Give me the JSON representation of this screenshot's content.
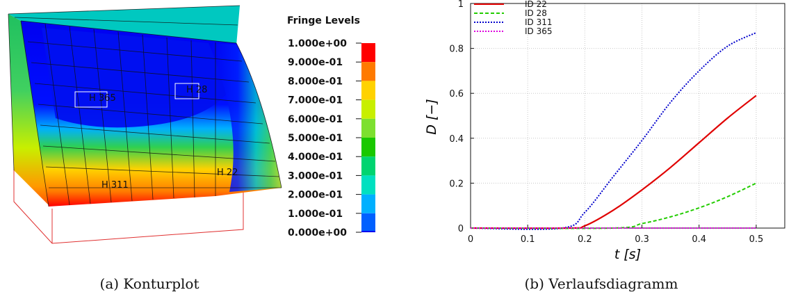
{
  "captions": {
    "a": "(a) Konturplot",
    "b": "(b) Verlaufsdiagramm"
  },
  "contour": {
    "legend_title": "Fringe Levels",
    "levels": [
      "1.000e+00",
      "9.000e-01",
      "8.000e-01",
      "7.000e-01",
      "6.000e-01",
      "5.000e-01",
      "4.000e-01",
      "3.000e-01",
      "2.000e-01",
      "1.000e-01",
      "0.000e+00"
    ],
    "colors": [
      "#ff0000",
      "#ff7a00",
      "#ffd200",
      "#c8ef00",
      "#7de030",
      "#19c800",
      "#00d470",
      "#00e0c0",
      "#00b0ff",
      "#0060ff",
      "#0000f0"
    ],
    "element_labels": [
      "H 365",
      "H 28",
      "H 311",
      "H 22"
    ]
  },
  "chart_data": {
    "type": "line",
    "xlabel": "t [s]",
    "ylabel": "D [−]",
    "xlim": [
      0,
      0.55
    ],
    "ylim": [
      0,
      1
    ],
    "xticks": [
      0,
      0.1,
      0.2,
      0.3,
      0.4,
      0.5
    ],
    "yticks": [
      0,
      0.2,
      0.4,
      0.6,
      0.8,
      1
    ],
    "grid": true,
    "legend_position": "top-left",
    "series": [
      {
        "name": "ID 22",
        "color": "#e00000",
        "dash": "solid",
        "x": [
          0,
          0.17,
          0.2,
          0.25,
          0.3,
          0.35,
          0.4,
          0.45,
          0.5
        ],
        "y": [
          0,
          0,
          0.01,
          0.08,
          0.17,
          0.27,
          0.38,
          0.49,
          0.59
        ]
      },
      {
        "name": "ID 28",
        "color": "#22cc00",
        "dash": "dashed",
        "x": [
          0,
          0.25,
          0.3,
          0.35,
          0.4,
          0.45,
          0.5
        ],
        "y": [
          0,
          0,
          0.02,
          0.05,
          0.09,
          0.14,
          0.2
        ]
      },
      {
        "name": "ID 311",
        "color": "#0000cc",
        "dash": "dotted",
        "x": [
          0,
          0.16,
          0.2,
          0.25,
          0.3,
          0.35,
          0.4,
          0.45,
          0.5
        ],
        "y": [
          0,
          0,
          0.07,
          0.23,
          0.39,
          0.56,
          0.7,
          0.81,
          0.87
        ]
      },
      {
        "name": "ID 365",
        "color": "#dd00dd",
        "dash": "dotted",
        "x": [
          0,
          0.5
        ],
        "y": [
          0,
          0
        ]
      }
    ]
  }
}
